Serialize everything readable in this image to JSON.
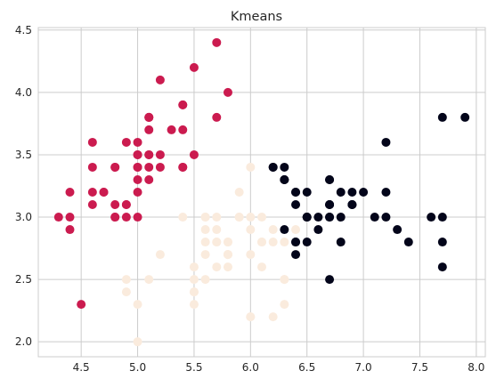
{
  "chart_data": {
    "type": "scatter",
    "title": "Kmeans",
    "xlabel": "",
    "ylabel": "",
    "xlim": [
      4.12,
      8.08
    ],
    "ylim": [
      1.88,
      4.52
    ],
    "xticks": [
      4.5,
      5.0,
      5.5,
      6.0,
      6.5,
      7.0,
      7.5,
      8.0
    ],
    "yticks": [
      2.0,
      2.5,
      3.0,
      3.5,
      4.0,
      4.5
    ],
    "xtick_labels": [
      "4.5",
      "5.0",
      "5.5",
      "6.0",
      "6.5",
      "7.0",
      "7.5",
      "8.0"
    ],
    "ytick_labels": [
      "2.0",
      "2.5",
      "3.0",
      "3.5",
      "4.0",
      "4.5"
    ],
    "grid": true,
    "legend": "none",
    "colors": {
      "cluster_0": "#cb1b4f",
      "cluster_1": "#faebdd",
      "cluster_2": "#03051a",
      "grid": "#cccccc",
      "text": "#262626"
    },
    "series": [
      {
        "color_key": "cluster_0",
        "points": [
          [
            5.1,
            3.5
          ],
          [
            4.9,
            3.0
          ],
          [
            4.7,
            3.2
          ],
          [
            4.6,
            3.1
          ],
          [
            5.0,
            3.6
          ],
          [
            5.4,
            3.9
          ],
          [
            4.6,
            3.4
          ],
          [
            5.0,
            3.4
          ],
          [
            4.4,
            2.9
          ],
          [
            4.9,
            3.1
          ],
          [
            5.4,
            3.7
          ],
          [
            4.8,
            3.4
          ],
          [
            4.8,
            3.0
          ],
          [
            4.3,
            3.0
          ],
          [
            5.8,
            4.0
          ],
          [
            5.7,
            4.4
          ],
          [
            5.4,
            3.9
          ],
          [
            5.1,
            3.5
          ],
          [
            5.7,
            3.8
          ],
          [
            5.1,
            3.8
          ],
          [
            5.4,
            3.4
          ],
          [
            5.1,
            3.7
          ],
          [
            4.6,
            3.6
          ],
          [
            5.1,
            3.3
          ],
          [
            4.8,
            3.4
          ],
          [
            5.0,
            3.0
          ],
          [
            5.0,
            3.4
          ],
          [
            5.2,
            3.5
          ],
          [
            5.2,
            3.4
          ],
          [
            4.7,
            3.2
          ],
          [
            4.8,
            3.1
          ],
          [
            5.4,
            3.4
          ],
          [
            5.2,
            4.1
          ],
          [
            5.5,
            4.2
          ],
          [
            4.9,
            3.1
          ],
          [
            5.0,
            3.2
          ],
          [
            5.5,
            3.5
          ],
          [
            4.9,
            3.6
          ],
          [
            4.4,
            3.0
          ],
          [
            5.1,
            3.4
          ],
          [
            5.0,
            3.5
          ],
          [
            4.5,
            2.3
          ],
          [
            4.4,
            3.2
          ],
          [
            5.0,
            3.5
          ],
          [
            5.1,
            3.8
          ],
          [
            4.8,
            3.0
          ],
          [
            5.1,
            3.8
          ],
          [
            4.6,
            3.2
          ],
          [
            5.3,
            3.7
          ],
          [
            5.0,
            3.3
          ]
        ]
      },
      {
        "color_key": "cluster_1",
        "points": [
          [
            5.5,
            2.3
          ],
          [
            5.7,
            2.8
          ],
          [
            4.9,
            2.4
          ],
          [
            5.2,
            2.7
          ],
          [
            5.0,
            2.0
          ],
          [
            5.9,
            3.0
          ],
          [
            6.0,
            2.2
          ],
          [
            5.6,
            2.9
          ],
          [
            5.6,
            3.0
          ],
          [
            5.8,
            2.7
          ],
          [
            6.2,
            2.2
          ],
          [
            5.6,
            2.5
          ],
          [
            5.9,
            3.2
          ],
          [
            6.1,
            2.8
          ],
          [
            6.1,
            2.8
          ],
          [
            6.0,
            2.9
          ],
          [
            5.7,
            2.6
          ],
          [
            5.5,
            2.4
          ],
          [
            5.5,
            2.4
          ],
          [
            5.8,
            2.7
          ],
          [
            6.0,
            2.7
          ],
          [
            5.4,
            3.0
          ],
          [
            6.0,
            3.4
          ],
          [
            6.3,
            2.3
          ],
          [
            5.6,
            3.0
          ],
          [
            5.5,
            2.5
          ],
          [
            5.5,
            2.6
          ],
          [
            6.1,
            3.0
          ],
          [
            5.8,
            2.6
          ],
          [
            5.0,
            2.3
          ],
          [
            5.6,
            2.7
          ],
          [
            5.7,
            3.0
          ],
          [
            5.7,
            2.9
          ],
          [
            6.2,
            2.9
          ],
          [
            5.1,
            2.5
          ],
          [
            5.7,
            2.8
          ],
          [
            4.9,
            2.5
          ],
          [
            6.3,
            2.5
          ],
          [
            6.1,
            2.6
          ],
          [
            5.8,
            2.8
          ],
          [
            6.4,
            2.7
          ],
          [
            6.2,
            2.8
          ],
          [
            6.0,
            3.0
          ],
          [
            5.8,
            2.7
          ],
          [
            6.3,
            2.5
          ],
          [
            6.2,
            3.4
          ],
          [
            5.9,
            3.0
          ],
          [
            5.6,
            2.8
          ],
          [
            5.8,
            2.8
          ],
          [
            6.0,
            2.2
          ],
          [
            6.4,
            2.9
          ],
          [
            6.3,
            2.8
          ]
        ]
      },
      {
        "color_key": "cluster_2",
        "points": [
          [
            7.0,
            3.2
          ],
          [
            6.4,
            3.2
          ],
          [
            6.9,
            3.1
          ],
          [
            6.5,
            2.8
          ],
          [
            6.3,
            3.3
          ],
          [
            6.6,
            2.9
          ],
          [
            6.7,
            3.1
          ],
          [
            6.2,
            3.4
          ],
          [
            6.8,
            2.8
          ],
          [
            6.7,
            3.0
          ],
          [
            6.6,
            3.0
          ],
          [
            6.7,
            3.1
          ],
          [
            6.3,
            3.3
          ],
          [
            7.1,
            3.0
          ],
          [
            6.3,
            2.9
          ],
          [
            6.5,
            3.0
          ],
          [
            7.6,
            3.0
          ],
          [
            7.3,
            2.9
          ],
          [
            6.7,
            2.5
          ],
          [
            7.2,
            3.6
          ],
          [
            6.5,
            3.2
          ],
          [
            6.4,
            2.7
          ],
          [
            6.8,
            3.0
          ],
          [
            6.4,
            3.2
          ],
          [
            6.5,
            3.0
          ],
          [
            7.7,
            3.8
          ],
          [
            7.7,
            2.6
          ],
          [
            6.9,
            3.2
          ],
          [
            7.7,
            2.8
          ],
          [
            6.7,
            3.3
          ],
          [
            7.2,
            3.2
          ],
          [
            6.4,
            2.8
          ],
          [
            7.2,
            3.0
          ],
          [
            7.4,
            2.8
          ],
          [
            7.9,
            3.8
          ],
          [
            6.4,
            2.8
          ],
          [
            7.7,
            3.0
          ],
          [
            6.3,
            3.4
          ],
          [
            6.4,
            3.1
          ],
          [
            6.9,
            3.1
          ],
          [
            6.7,
            3.1
          ],
          [
            6.9,
            3.1
          ],
          [
            6.8,
            3.2
          ],
          [
            6.7,
            3.3
          ],
          [
            6.7,
            3.0
          ],
          [
            6.5,
            3.0
          ],
          [
            6.2,
            3.4
          ],
          [
            6.3,
            3.3
          ]
        ]
      }
    ]
  }
}
